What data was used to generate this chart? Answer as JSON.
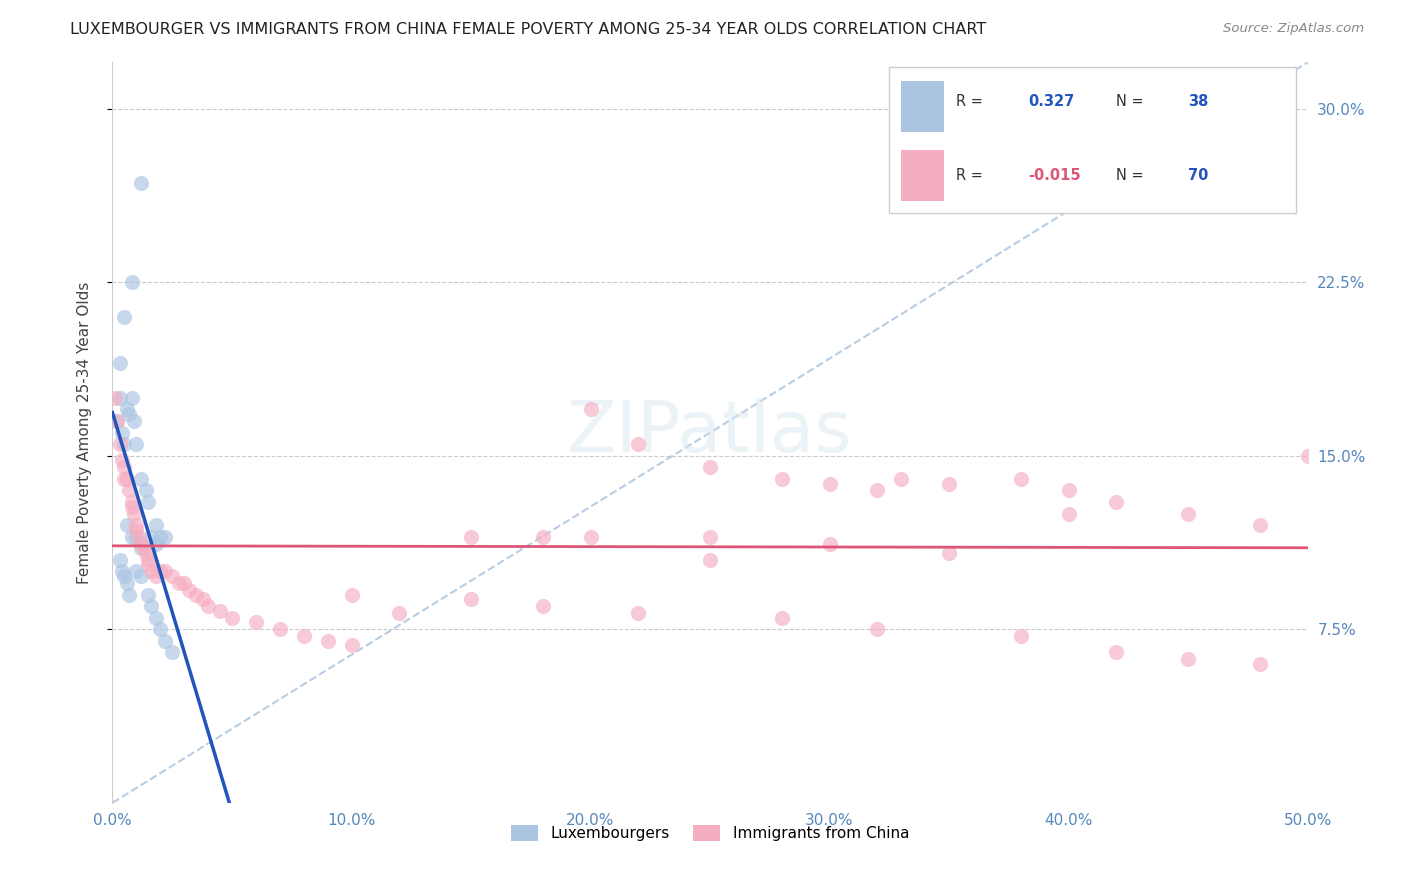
{
  "title": "LUXEMBOURGER VS IMMIGRANTS FROM CHINA FEMALE POVERTY AMONG 25-34 YEAR OLDS CORRELATION CHART",
  "source": "Source: ZipAtlas.com",
  "xlim": [
    0,
    0.5
  ],
  "ylim": [
    0,
    0.32
  ],
  "ylabel": "Female Poverty Among 25-34 Year Olds",
  "legend_label1": "Luxembourgers",
  "legend_label2": "Immigrants from China",
  "R1": 0.327,
  "N1": 38,
  "R2": -0.015,
  "N2": 70,
  "color_blue": "#aac4e2",
  "color_pink": "#f5adc0",
  "line_blue": "#2255bb",
  "line_pink": "#dd5577",
  "line_dash_color": "#b0c8e0",
  "lux_x": [
    0.012,
    0.008,
    0.005,
    0.003,
    0.003,
    0.002,
    0.004,
    0.005,
    0.006,
    0.007,
    0.008,
    0.009,
    0.01,
    0.012,
    0.014,
    0.015,
    0.018,
    0.006,
    0.008,
    0.01,
    0.012,
    0.016,
    0.018,
    0.02,
    0.022,
    0.003,
    0.004,
    0.005,
    0.006,
    0.007,
    0.01,
    0.012,
    0.015,
    0.016,
    0.018,
    0.02,
    0.022,
    0.025
  ],
  "lux_y": [
    0.268,
    0.225,
    0.21,
    0.19,
    0.175,
    0.165,
    0.16,
    0.155,
    0.17,
    0.168,
    0.175,
    0.165,
    0.155,
    0.14,
    0.135,
    0.13,
    0.12,
    0.12,
    0.115,
    0.115,
    0.11,
    0.115,
    0.112,
    0.115,
    0.115,
    0.105,
    0.1,
    0.098,
    0.095,
    0.09,
    0.1,
    0.098,
    0.09,
    0.085,
    0.08,
    0.075,
    0.07,
    0.065
  ],
  "china_x": [
    0.001,
    0.002,
    0.003,
    0.004,
    0.005,
    0.005,
    0.006,
    0.007,
    0.008,
    0.008,
    0.009,
    0.01,
    0.01,
    0.011,
    0.012,
    0.013,
    0.014,
    0.015,
    0.015,
    0.016,
    0.018,
    0.02,
    0.022,
    0.025,
    0.028,
    0.03,
    0.032,
    0.035,
    0.038,
    0.04,
    0.045,
    0.05,
    0.06,
    0.07,
    0.08,
    0.09,
    0.1,
    0.12,
    0.15,
    0.18,
    0.2,
    0.22,
    0.25,
    0.28,
    0.3,
    0.32,
    0.33,
    0.35,
    0.38,
    0.4,
    0.42,
    0.45,
    0.48,
    0.5,
    0.25,
    0.3,
    0.35,
    0.4,
    0.2,
    0.25,
    0.1,
    0.15,
    0.18,
    0.22,
    0.28,
    0.32,
    0.38,
    0.42,
    0.45,
    0.48
  ],
  "china_y": [
    0.175,
    0.165,
    0.155,
    0.148,
    0.145,
    0.14,
    0.14,
    0.135,
    0.13,
    0.128,
    0.125,
    0.12,
    0.118,
    0.115,
    0.112,
    0.11,
    0.108,
    0.105,
    0.103,
    0.1,
    0.098,
    0.1,
    0.1,
    0.098,
    0.095,
    0.095,
    0.092,
    0.09,
    0.088,
    0.085,
    0.083,
    0.08,
    0.078,
    0.075,
    0.072,
    0.07,
    0.068,
    0.082,
    0.115,
    0.115,
    0.17,
    0.155,
    0.145,
    0.14,
    0.138,
    0.135,
    0.14,
    0.138,
    0.14,
    0.135,
    0.13,
    0.125,
    0.12,
    0.15,
    0.115,
    0.112,
    0.108,
    0.125,
    0.115,
    0.105,
    0.09,
    0.088,
    0.085,
    0.082,
    0.08,
    0.075,
    0.072,
    0.065,
    0.062,
    0.06
  ]
}
